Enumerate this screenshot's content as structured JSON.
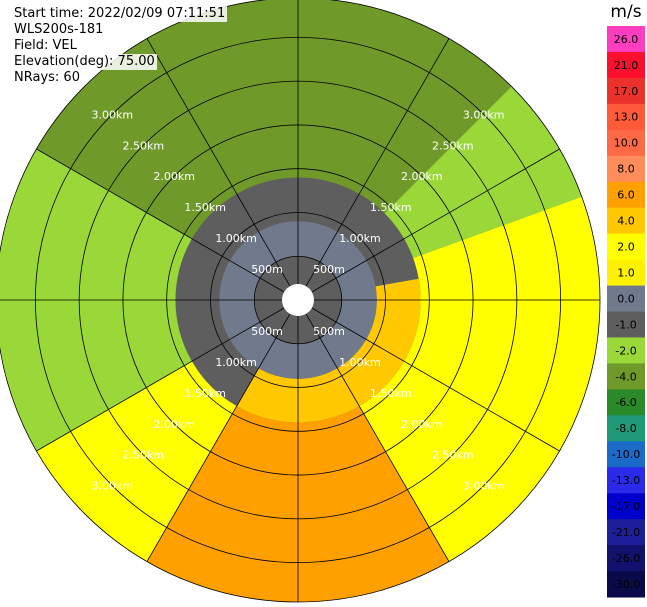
{
  "info": {
    "start_time": "Start time: 2022/02/09 07:11:51",
    "site": "WLS200s-181",
    "field": "Field: VEL",
    "elevation": "Elevation(deg): 75.00",
    "nrays": "NRays: 60"
  },
  "chart_data": {
    "type": "heatmap",
    "projection": "polar",
    "field": "VEL",
    "units": "m/s",
    "n_rays": 60,
    "elevation_deg": 75.0,
    "range_rings": [
      "500m",
      "1.00km",
      "1.50km",
      "2.00km",
      "2.50km",
      "3.00km"
    ],
    "ring_ranges_km": [
      0.5,
      1.0,
      1.5,
      2.0,
      2.5,
      3.0
    ],
    "max_range_km": 3.45,
    "spokes_deg": [
      0,
      30,
      60,
      90,
      120,
      150,
      180,
      210,
      240,
      270,
      300,
      330
    ],
    "colorbar": {
      "label": "m/s",
      "tick_labels": [
        "26.0",
        "21.0",
        "17.0",
        "13.0",
        "10.0",
        "8.0",
        "6.0",
        "4.0",
        "2.0",
        "1.0",
        "0.0",
        "-1.0",
        "-2.0",
        "-4.0",
        "-6.0",
        "-8.0",
        "-10.0",
        "-13.0",
        "-17.0",
        "-21.0",
        "-26.0",
        "-30.0"
      ],
      "colors": [
        "#ff3dbf",
        "#ff0f2e",
        "#e8322a",
        "#ff5a3a",
        "#ff6a46",
        "#ff8c5a",
        "#ffa000",
        "#ffc800",
        "#ffff00",
        "#fff200",
        "#707a8c",
        "#5e5e5e",
        "#9ad83a",
        "#6f9a2a",
        "#2a8a2a",
        "#1e9a78",
        "#1a6ac8",
        "#2a2ae8",
        "#0000cc",
        "#1e1e9a",
        "#12126e",
        "#0a0a4a"
      ]
    },
    "sectors": [
      {
        "az_start": 300,
        "az_end": 405,
        "r_start": 1.4,
        "r_end": 3.45,
        "value": -3.0,
        "color": "#6f9a2a"
      },
      {
        "az_start": 240,
        "az_end": 300,
        "r_start": 1.4,
        "r_end": 3.45,
        "value": -1.5,
        "color": "#9ad83a"
      },
      {
        "az_start": 45,
        "az_end": 70,
        "r_start": 1.4,
        "r_end": 3.45,
        "value": -1.5,
        "color": "#9ad83a"
      },
      {
        "az_start": 70,
        "az_end": 150,
        "r_start": 1.4,
        "r_end": 3.45,
        "value": 2.5,
        "color": "#ffff00"
      },
      {
        "az_start": 150,
        "az_end": 210,
        "r_start": 1.4,
        "r_end": 3.45,
        "value": 5.0,
        "color": "#ffa000"
      },
      {
        "az_start": 210,
        "az_end": 240,
        "r_start": 1.4,
        "r_end": 3.45,
        "value": 2.5,
        "color": "#ffff00"
      },
      {
        "az_start": 80,
        "az_end": 210,
        "r_start": 0.9,
        "r_end": 1.4,
        "value": 2.0,
        "color": "#ffc800"
      },
      {
        "az_start": 0,
        "az_end": 360,
        "r_start": 0.15,
        "r_end": 0.9,
        "value": 0.0,
        "color": "#707a8c"
      },
      {
        "az_start": 0,
        "az_end": 360,
        "r_start": 0.15,
        "r_end": 0.5,
        "value": -0.5,
        "color": "#5e5e5e"
      }
    ]
  }
}
